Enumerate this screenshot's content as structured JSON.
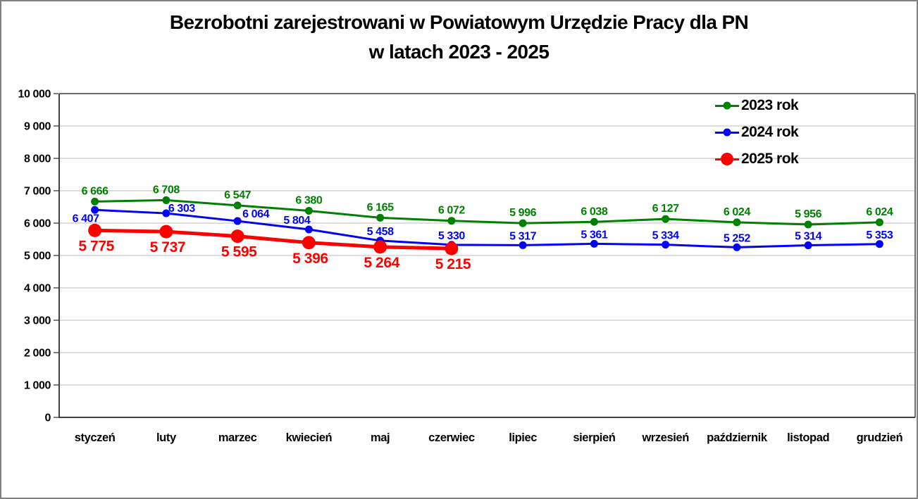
{
  "title": {
    "line1": "Bezrobotni zarejestrowani w Powiatowym Urzędzie Pracy dla PN",
    "line2": "w latach 2023 - 2025"
  },
  "legend": {
    "items": [
      {
        "label": "2023 rok",
        "color": "#008000",
        "marker": "small"
      },
      {
        "label": "2024 rok",
        "color": "#0000FF",
        "marker": "small"
      },
      {
        "label": "2025 rok",
        "color": "#FF0000",
        "marker": "large"
      }
    ]
  },
  "chart_data": {
    "type": "line",
    "title": "Bezrobotni zarejestrowani w Powiatowym Urzędzie Pracy dla PN w latach 2023 - 2025",
    "categories": [
      "styczeń",
      "luty",
      "marzec",
      "kwiecień",
      "maj",
      "czerwiec",
      "lipiec",
      "sierpień",
      "wrzesień",
      "październik",
      "listopad",
      "grudzień"
    ],
    "series": [
      {
        "name": "2023 rok",
        "color": "#008000",
        "values": [
          6666,
          6708,
          6547,
          6380,
          6165,
          6072,
          5996,
          6038,
          6127,
          6024,
          5956,
          6024
        ]
      },
      {
        "name": "2024 rok",
        "color": "#0000FF",
        "values": [
          6407,
          6303,
          6064,
          5804,
          5458,
          5330,
          5317,
          5361,
          5334,
          5252,
          5314,
          5353
        ]
      },
      {
        "name": "2025 rok",
        "color": "#FF0000",
        "values": [
          5775,
          5737,
          5595,
          5396,
          5264,
          5215
        ]
      }
    ],
    "xlabel": "",
    "ylabel": "",
    "ylim": [
      0,
      10000
    ],
    "ytick_step": 1000,
    "ytick_labels": [
      "0",
      "1 000",
      "2 000",
      "3 000",
      "4 000",
      "5 000",
      "6 000",
      "7 000",
      "8 000",
      "9 000",
      "10 000"
    ],
    "grid": true,
    "data_labels": true,
    "number_format": "space-thousands",
    "legend_position": "top-right"
  }
}
